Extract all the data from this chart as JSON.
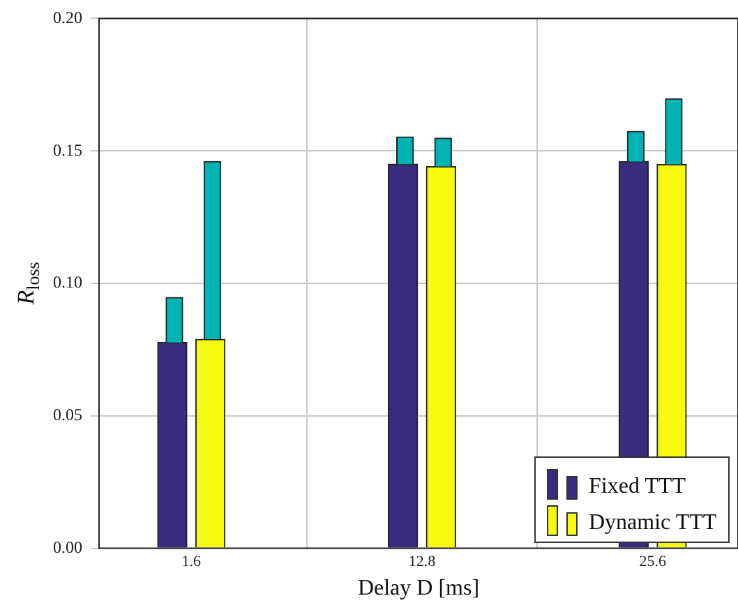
{
  "chart_data": {
    "type": "bar",
    "xlabel": "Delay D [ms]",
    "ylabel": "R$_{loss}$",
    "categories": [
      "1.6",
      "12.8",
      "25.6"
    ],
    "series": [
      {
        "name": "Fixed TTT",
        "color": "#392c80",
        "values": [
          0.0777,
          0.145,
          0.146
        ]
      },
      {
        "color": "#00b4b4",
        "base": [
          0.0777,
          0.145,
          0.146
        ],
        "values": [
          0.017,
          0.0103,
          0.0114
        ]
      },
      {
        "name": "Dynamic TTT",
        "color": "#f7f90e",
        "values": [
          0.0789,
          0.1441,
          0.1449
        ]
      },
      {
        "color": "#00b4b4",
        "base": [
          0.0789,
          0.1441,
          0.1449
        ],
        "values": [
          0.0671,
          0.0107,
          0.0248
        ]
      }
    ],
    "ylim": [
      0,
      0.2
    ],
    "yticks": [
      {
        "value": 0,
        "label": "0.00"
      },
      {
        "value": 0.05,
        "label": "0.05"
      },
      {
        "value": 0.1,
        "label": "0.10"
      },
      {
        "value": 0.15,
        "label": "0.15"
      },
      {
        "value": 0.2,
        "label": "0.20"
      }
    ],
    "grid": true,
    "legend": "bottom right"
  }
}
